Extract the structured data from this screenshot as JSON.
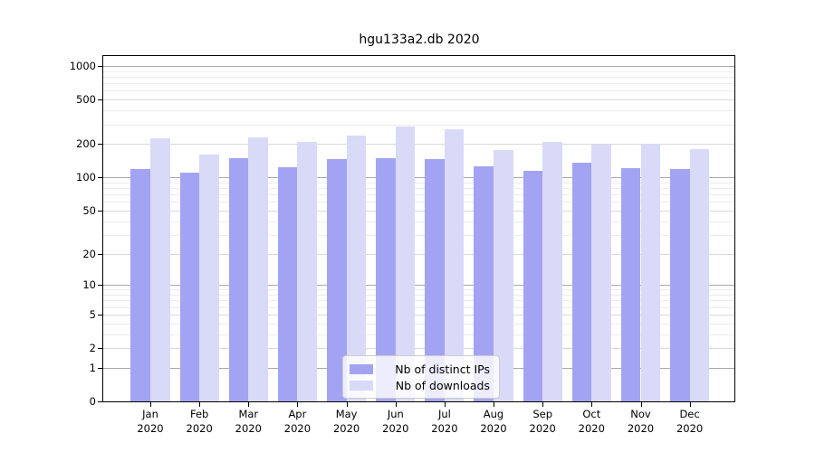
{
  "chart_data": {
    "type": "bar",
    "title": "hgu133a2.db 2020",
    "categories": [
      "Jan",
      "Feb",
      "Mar",
      "Apr",
      "May",
      "Jun",
      "Jul",
      "Aug",
      "Sep",
      "Oct",
      "Nov",
      "Dec"
    ],
    "x_tick_second_line": "2020",
    "series": [
      {
        "name": "Nb of distinct IPs",
        "color": "#a3a3f3",
        "values": [
          120,
          110,
          148,
          123,
          145,
          148,
          145,
          126,
          115,
          136,
          122,
          120
        ]
      },
      {
        "name": "Nb of downloads",
        "color": "#d9d9f8",
        "values": [
          224,
          160,
          227,
          207,
          237,
          286,
          270,
          177,
          208,
          196,
          202,
          178
        ]
      }
    ],
    "ylabel": "",
    "xlabel": "",
    "yscale": "log1p",
    "ylim": [
      0,
      1000
    ],
    "yticks": [
      0,
      1,
      2,
      5,
      10,
      20,
      50,
      100,
      200,
      500,
      1000
    ],
    "grid": "both",
    "legend_position": "lower center",
    "axis_color": "#000000",
    "grid_decade_color": "#a9a9a9",
    "grid_major_color": "#d9d9d9",
    "grid_minor_color": "#ececec"
  }
}
